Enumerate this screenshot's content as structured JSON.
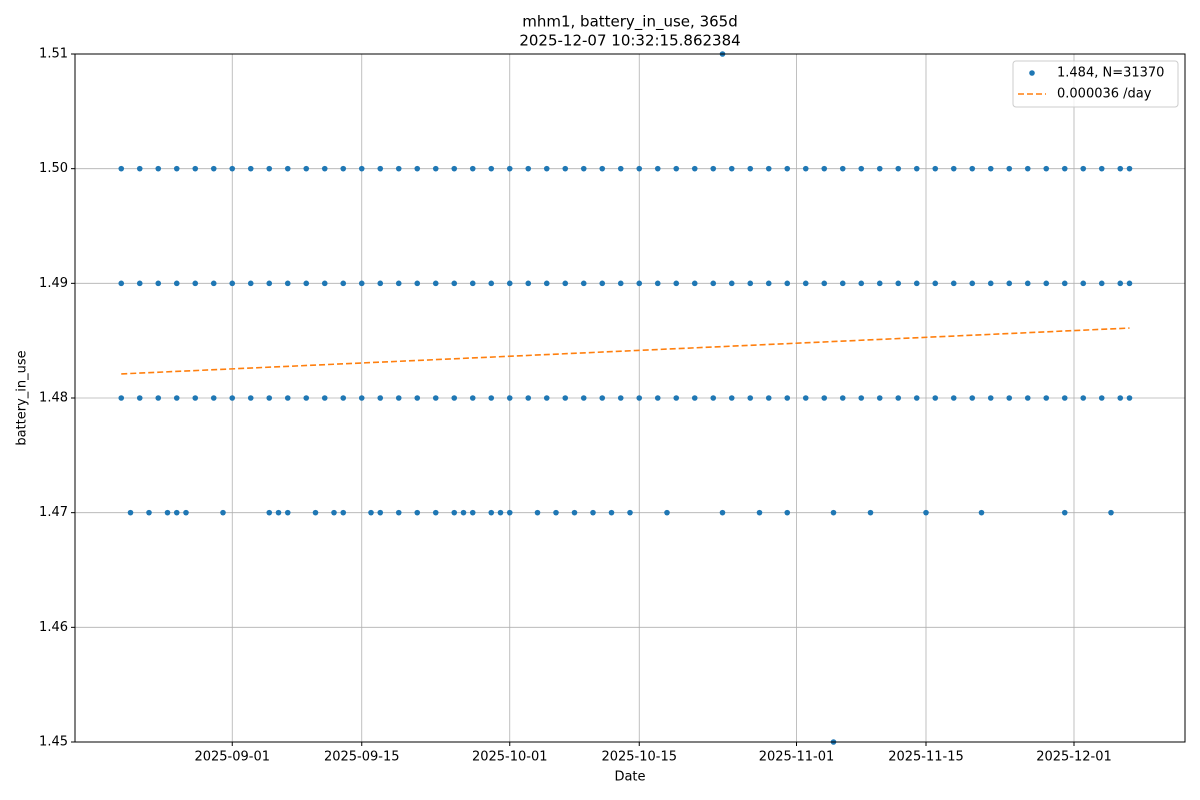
{
  "chart_data": {
    "type": "scatter",
    "title": "mhm1, battery_in_use, 365d",
    "subtitle": "2025-12-07 10:32:15.862384",
    "x_label": "Date",
    "y_label": "battery_in_use",
    "xlim": [
      "2025-08-15",
      "2025-12-13"
    ],
    "xticks": [
      "2025-09-01",
      "2025-09-15",
      "2025-10-01",
      "2025-10-15",
      "2025-11-01",
      "2025-11-15",
      "2025-12-01"
    ],
    "ylim": [
      1.45,
      1.51
    ],
    "yticks": [
      1.45,
      1.46,
      1.47,
      1.48,
      1.49,
      {
        "value": 1.5,
        "label": "1.50"
      },
      1.51
    ],
    "grid": true,
    "legend": "upper right",
    "series": [
      {
        "name": "1.484, N=31370",
        "color": "#1f77b4",
        "kind": "scatter",
        "x": [
          "2025-08-20",
          "2025-08-22",
          "2025-08-24",
          "2025-08-26",
          "2025-08-28",
          "2025-08-30",
          "2025-09-01",
          "2025-09-03",
          "2025-09-05",
          "2025-09-07",
          "2025-09-09",
          "2025-09-11",
          "2025-09-13",
          "2025-09-15",
          "2025-09-17",
          "2025-09-19",
          "2025-09-21",
          "2025-09-23",
          "2025-09-25",
          "2025-09-27",
          "2025-09-29",
          "2025-10-01",
          "2025-10-03",
          "2025-10-05",
          "2025-10-07",
          "2025-10-09",
          "2025-10-11",
          "2025-10-13",
          "2025-10-15",
          "2025-10-17",
          "2025-10-19",
          "2025-10-21",
          "2025-10-23",
          "2025-10-25",
          "2025-10-27",
          "2025-10-29",
          "2025-10-31",
          "2025-11-02",
          "2025-11-04",
          "2025-11-06",
          "2025-11-08",
          "2025-11-10",
          "2025-11-12",
          "2025-11-14",
          "2025-11-16",
          "2025-11-18",
          "2025-11-20",
          "2025-11-22",
          "2025-11-24",
          "2025-11-26",
          "2025-11-28",
          "2025-11-30",
          "2025-12-02",
          "2025-12-04",
          "2025-12-06",
          "2025-12-07",
          "2025-08-20",
          "2025-08-22",
          "2025-08-24",
          "2025-08-26",
          "2025-08-28",
          "2025-08-30",
          "2025-09-01",
          "2025-09-03",
          "2025-09-05",
          "2025-09-07",
          "2025-09-09",
          "2025-09-11",
          "2025-09-13",
          "2025-09-15",
          "2025-09-17",
          "2025-09-19",
          "2025-09-21",
          "2025-09-23",
          "2025-09-25",
          "2025-09-27",
          "2025-09-29",
          "2025-10-01",
          "2025-10-03",
          "2025-10-05",
          "2025-10-07",
          "2025-10-09",
          "2025-10-11",
          "2025-10-13",
          "2025-10-15",
          "2025-10-17",
          "2025-10-19",
          "2025-10-21",
          "2025-10-23",
          "2025-10-25",
          "2025-10-27",
          "2025-10-29",
          "2025-10-31",
          "2025-11-02",
          "2025-11-04",
          "2025-11-06",
          "2025-11-08",
          "2025-11-10",
          "2025-11-12",
          "2025-11-14",
          "2025-11-16",
          "2025-11-18",
          "2025-11-20",
          "2025-11-22",
          "2025-11-24",
          "2025-11-26",
          "2025-11-28",
          "2025-11-30",
          "2025-12-02",
          "2025-12-04",
          "2025-12-06",
          "2025-12-07",
          "2025-08-20",
          "2025-08-22",
          "2025-08-24",
          "2025-08-26",
          "2025-08-28",
          "2025-08-30",
          "2025-09-01",
          "2025-09-03",
          "2025-09-05",
          "2025-09-07",
          "2025-09-09",
          "2025-09-11",
          "2025-09-13",
          "2025-09-15",
          "2025-09-17",
          "2025-09-19",
          "2025-09-21",
          "2025-09-23",
          "2025-09-25",
          "2025-09-27",
          "2025-09-29",
          "2025-10-01",
          "2025-10-03",
          "2025-10-05",
          "2025-10-07",
          "2025-10-09",
          "2025-10-11",
          "2025-10-13",
          "2025-10-15",
          "2025-10-17",
          "2025-10-19",
          "2025-10-21",
          "2025-10-23",
          "2025-10-25",
          "2025-10-27",
          "2025-10-29",
          "2025-10-31",
          "2025-11-02",
          "2025-11-04",
          "2025-11-06",
          "2025-11-08",
          "2025-11-10",
          "2025-11-12",
          "2025-11-14",
          "2025-11-16",
          "2025-11-18",
          "2025-11-20",
          "2025-11-22",
          "2025-11-24",
          "2025-11-26",
          "2025-11-28",
          "2025-11-30",
          "2025-12-02",
          "2025-12-04",
          "2025-12-06",
          "2025-12-07",
          "2025-08-21",
          "2025-08-23",
          "2025-08-25",
          "2025-08-26",
          "2025-08-27",
          "2025-08-31",
          "2025-09-05",
          "2025-09-06",
          "2025-09-07",
          "2025-09-10",
          "2025-09-12",
          "2025-09-13",
          "2025-09-16",
          "2025-09-17",
          "2025-09-19",
          "2025-09-21",
          "2025-09-23",
          "2025-09-25",
          "2025-09-26",
          "2025-09-27",
          "2025-09-29",
          "2025-09-30",
          "2025-10-01",
          "2025-10-04",
          "2025-10-06",
          "2025-10-08",
          "2025-10-10",
          "2025-10-12",
          "2025-10-14",
          "2025-10-18",
          "2025-10-24",
          "2025-10-28",
          "2025-10-31",
          "2025-11-05",
          "2025-11-09",
          "2025-11-15",
          "2025-11-21",
          "2025-11-30",
          "2025-12-05",
          "2025-10-24",
          "2025-11-05"
        ],
        "y": [
          1.5,
          1.5,
          1.5,
          1.5,
          1.5,
          1.5,
          1.5,
          1.5,
          1.5,
          1.5,
          1.5,
          1.5,
          1.5,
          1.5,
          1.5,
          1.5,
          1.5,
          1.5,
          1.5,
          1.5,
          1.5,
          1.5,
          1.5,
          1.5,
          1.5,
          1.5,
          1.5,
          1.5,
          1.5,
          1.5,
          1.5,
          1.5,
          1.5,
          1.5,
          1.5,
          1.5,
          1.5,
          1.5,
          1.5,
          1.5,
          1.5,
          1.5,
          1.5,
          1.5,
          1.5,
          1.5,
          1.5,
          1.5,
          1.5,
          1.5,
          1.5,
          1.5,
          1.5,
          1.5,
          1.5,
          1.5,
          1.49,
          1.49,
          1.49,
          1.49,
          1.49,
          1.49,
          1.49,
          1.49,
          1.49,
          1.49,
          1.49,
          1.49,
          1.49,
          1.49,
          1.49,
          1.49,
          1.49,
          1.49,
          1.49,
          1.49,
          1.49,
          1.49,
          1.49,
          1.49,
          1.49,
          1.49,
          1.49,
          1.49,
          1.49,
          1.49,
          1.49,
          1.49,
          1.49,
          1.49,
          1.49,
          1.49,
          1.49,
          1.49,
          1.49,
          1.49,
          1.49,
          1.49,
          1.49,
          1.49,
          1.49,
          1.49,
          1.49,
          1.49,
          1.49,
          1.49,
          1.49,
          1.49,
          1.49,
          1.49,
          1.49,
          1.49,
          1.48,
          1.48,
          1.48,
          1.48,
          1.48,
          1.48,
          1.48,
          1.48,
          1.48,
          1.48,
          1.48,
          1.48,
          1.48,
          1.48,
          1.48,
          1.48,
          1.48,
          1.48,
          1.48,
          1.48,
          1.48,
          1.48,
          1.48,
          1.48,
          1.48,
          1.48,
          1.48,
          1.48,
          1.48,
          1.48,
          1.48,
          1.48,
          1.48,
          1.48,
          1.48,
          1.48,
          1.48,
          1.48,
          1.48,
          1.48,
          1.48,
          1.48,
          1.48,
          1.48,
          1.48,
          1.48,
          1.48,
          1.48,
          1.48,
          1.48,
          1.48,
          1.48,
          1.48,
          1.48,
          1.48,
          1.48,
          1.47,
          1.47,
          1.47,
          1.47,
          1.47,
          1.47,
          1.47,
          1.47,
          1.47,
          1.47,
          1.47,
          1.47,
          1.47,
          1.47,
          1.47,
          1.47,
          1.47,
          1.47,
          1.47,
          1.47,
          1.47,
          1.47,
          1.47,
          1.47,
          1.47,
          1.47,
          1.47,
          1.47,
          1.47,
          1.47,
          1.47,
          1.47,
          1.47,
          1.47,
          1.47,
          1.47,
          1.47,
          1.47,
          1.47,
          1.51,
          1.45
        ]
      },
      {
        "name": "0.000036 /day",
        "color": "#ff7f0e",
        "kind": "line",
        "dashed": true,
        "x": [
          "2025-08-20",
          "2025-12-07"
        ],
        "y": [
          1.4821,
          1.4861
        ]
      }
    ]
  }
}
